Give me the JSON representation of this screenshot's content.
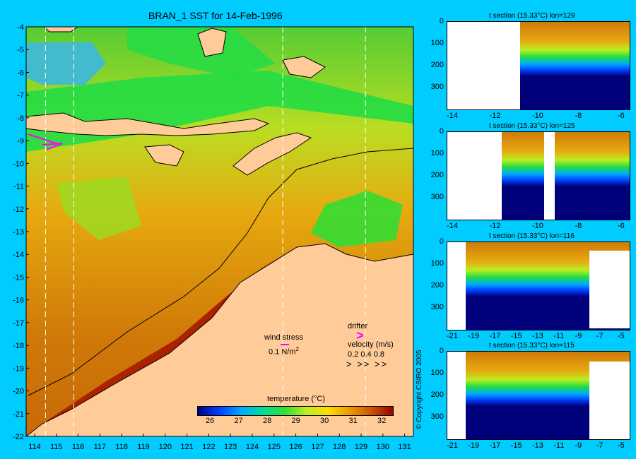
{
  "main_title": "BRAN_1 SST for 14-Feb-1996",
  "map": {
    "lat_labels": [
      "-4",
      "-5",
      "-6",
      "-7",
      "-8",
      "-9",
      "-10",
      "-11",
      "-12",
      "-13",
      "-14",
      "-15",
      "-16",
      "-17",
      "-18",
      "-19",
      "-20",
      "-21",
      "-22"
    ],
    "lon_labels": [
      "114",
      "115",
      "116",
      "117",
      "118",
      "119",
      "120",
      "121",
      "122",
      "123",
      "124",
      "125",
      "126",
      "127",
      "128",
      "129",
      "130",
      "131"
    ],
    "section_lons": [
      114.5,
      115.8,
      125.4,
      129.2
    ]
  },
  "legend": {
    "wind_stress_label": "wind stress",
    "wind_stress_value": "0.1 N/m",
    "wind_stress_sup": "2",
    "drifter_label": "drifter",
    "velocity_label": "velocity (m/s)",
    "velocity_values": "0.2 0.4 0.8",
    "velocity_glyph": "> >> >>"
  },
  "colorbar": {
    "title": "temperature (°C)",
    "ticks": [
      "26",
      "27",
      "28",
      "29",
      "30",
      "31",
      "32"
    ]
  },
  "colors": {
    "background": "#00ccff",
    "land": "#ffcc99",
    "deep_water": "#00007a",
    "drifter": "#ff00ff"
  },
  "sections": [
    {
      "title": "t section (15.33°C) lon=129",
      "y_ticks": [
        "0",
        "100",
        "200",
        "300"
      ],
      "x_ticks": [
        "-14",
        "-12",
        "-10",
        "-8",
        "-6"
      ]
    },
    {
      "title": "t section (15.33°C) lon=125",
      "y_ticks": [
        "0",
        "100",
        "200",
        "300"
      ],
      "x_ticks": [
        "-14",
        "-12",
        "-10",
        "-8",
        "-6"
      ]
    },
    {
      "title": "t section (15.33°C) lon=116",
      "y_ticks": [
        "0",
        "100",
        "200",
        "300"
      ],
      "x_ticks": [
        "-21",
        "-19",
        "-17",
        "-15",
        "-13",
        "-11",
        "-9",
        "-7",
        "-5"
      ]
    },
    {
      "title": "t section (15.33°C) lon=115",
      "y_ticks": [
        "0",
        "100",
        "200",
        "300"
      ],
      "x_ticks": [
        "-21",
        "-19",
        "-17",
        "-15",
        "-13",
        "-11",
        "-9",
        "-7",
        "-5"
      ]
    }
  ],
  "copyright": "© Copyright CSIRO 2005"
}
